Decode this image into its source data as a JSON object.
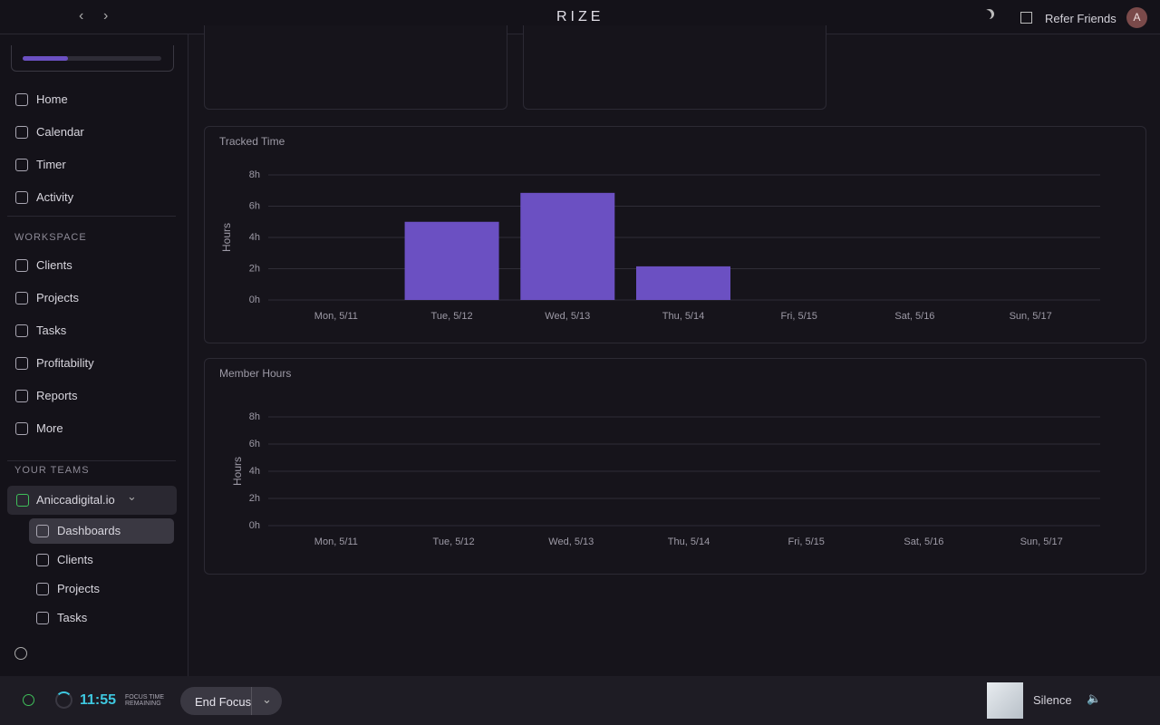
{
  "topbar": {
    "logo": "RIZE",
    "refer": "Refer Friends",
    "avatar": "A"
  },
  "sidebar": {
    "nav": [
      "Home",
      "Calendar",
      "Timer",
      "Activity"
    ],
    "workspace_heading": "WORKSPACE",
    "workspace": [
      "Clients",
      "Projects",
      "Tasks",
      "Profitability",
      "Reports",
      "More"
    ],
    "teams_heading": "YOUR TEAMS",
    "team": "Aniccadigital.io",
    "team_items": [
      "Dashboards",
      "Clients",
      "Projects",
      "Tasks"
    ]
  },
  "chart_data": [
    {
      "type": "bar",
      "title": "Tracked Time",
      "y_label": "Hours",
      "categories": [
        "Mon, 5/11",
        "Tue, 5/12",
        "Wed, 5/13",
        "Thu, 5/14",
        "Fri, 5/15",
        "Sat, 5/16",
        "Sun, 5/17"
      ],
      "values": [
        0,
        5,
        6.85,
        2.15,
        0,
        0,
        0
      ],
      "color": "#6b50c2",
      "ylim": [
        0,
        8
      ],
      "yticks": [
        {
          "value": 0,
          "label": "0h"
        },
        {
          "value": 2,
          "label": "2h"
        },
        {
          "value": 4,
          "label": "4h"
        },
        {
          "value": 6,
          "label": "6h"
        },
        {
          "value": 8,
          "label": "8h"
        }
      ],
      "grid": true
    },
    {
      "type": "bar",
      "title": "Member Hours",
      "y_label": "Hours",
      "categories": [
        "Mon, 5/11",
        "Tue, 5/12",
        "Wed, 5/13",
        "Thu, 5/14",
        "Fri, 5/15",
        "Sat, 5/16",
        "Sun, 5/17"
      ],
      "ylim": [
        0,
        8
      ],
      "yticks": [
        {
          "value": 0,
          "label": "0h"
        },
        {
          "value": 2,
          "label": "2h"
        },
        {
          "value": 4,
          "label": "4h"
        },
        {
          "value": 6,
          "label": "6h"
        },
        {
          "value": 8,
          "label": "8h"
        }
      ],
      "grid": true
    }
  ],
  "footer": {
    "time": "11:55",
    "focus_label_1": "FOCUS TIME",
    "focus_label_2": "REMAINING",
    "end_button": "End Focus",
    "sound": "Silence"
  }
}
